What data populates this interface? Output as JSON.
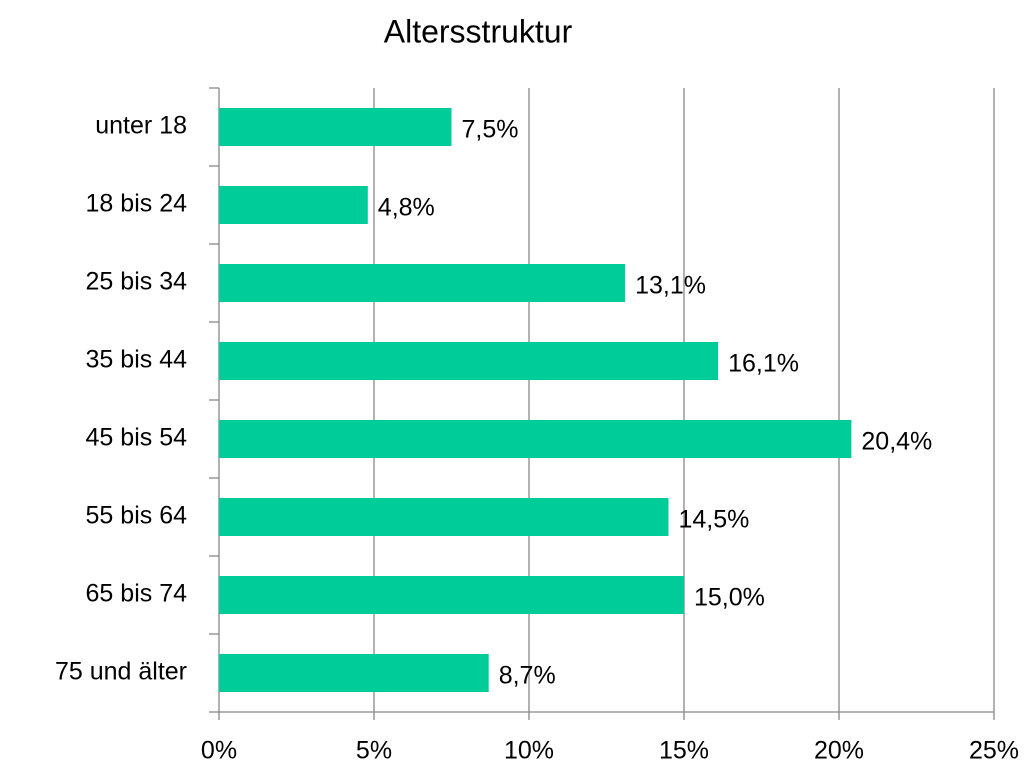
{
  "chart_data": {
    "type": "bar",
    "orientation": "horizontal",
    "title": "Altersstruktur",
    "categories": [
      "unter 18",
      "18 bis 24",
      "25 bis 34",
      "35 bis 44",
      "45 bis 54",
      "55 bis 64",
      "65 bis 74",
      "75 und älter"
    ],
    "values": [
      7.5,
      4.8,
      13.1,
      16.1,
      20.4,
      14.5,
      15.0,
      8.7
    ],
    "value_labels": [
      "7,5%",
      "4,8%",
      "13,1%",
      "16,1%",
      "20,4%",
      "14,5%",
      "15,0%",
      "8,7%"
    ],
    "color": "#00cc99",
    "xlim": [
      0,
      25
    ],
    "xticks": [
      {
        "value": 0,
        "label": "0%"
      },
      {
        "value": 5,
        "label": "5%"
      },
      {
        "value": 10,
        "label": "10%"
      },
      {
        "value": 15,
        "label": "15%"
      },
      {
        "value": 20,
        "label": "20%"
      },
      {
        "value": 25,
        "label": "25%"
      }
    ],
    "grid": true
  }
}
